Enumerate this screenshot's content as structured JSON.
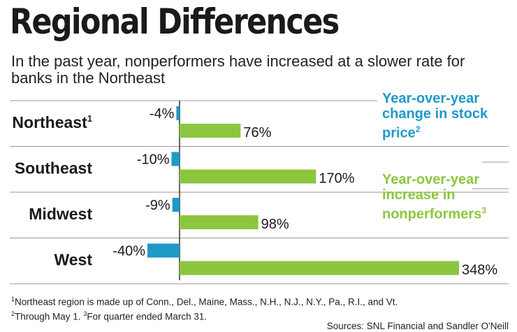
{
  "title": "Regional Differences",
  "subtitle": "In the past year, nonperformers have increased at a slower rate for banks in the Northeast",
  "legend": {
    "stock": {
      "line1": "Year-over-year",
      "line2": "change in stock",
      "line3": "price",
      "note": "2",
      "color": "#1e9ac7"
    },
    "nonperformers": {
      "line1": "Year-over-year",
      "line2": "increase in",
      "line3": "nonperformers",
      "note": "3",
      "color": "#8cc63f"
    }
  },
  "footnotes": {
    "note1_num": "1",
    "note1_text": "Northeast region is made up of Conn., Del., Maine, Mass., N.H., N.J., N.Y., Pa., R.I., and Vt.",
    "note2_num": "2",
    "note2_text": "Through May 1.",
    "note3_num": "3",
    "note3_text": "For quarter ended March 31.",
    "sources": "Sources: SNL Financial and Sandler O'Neill"
  },
  "chart_data": {
    "type": "bar",
    "categories": [
      "Northeast",
      "Southeast",
      "Midwest",
      "West"
    ],
    "category_notes": [
      "1",
      "",
      "",
      ""
    ],
    "series": [
      {
        "name": "Year-over-year change in stock price",
        "values": [
          -4,
          -10,
          -9,
          -40
        ],
        "labels": [
          "-4%",
          "-10%",
          "-9%",
          "-40%"
        ],
        "color": "#1e9ac7"
      },
      {
        "name": "Year-over-year increase in nonperformers",
        "values": [
          76,
          170,
          98,
          348
        ],
        "labels": [
          "76%",
          "170%",
          "98%",
          "348%"
        ],
        "color": "#8cc63f"
      }
    ]
  }
}
